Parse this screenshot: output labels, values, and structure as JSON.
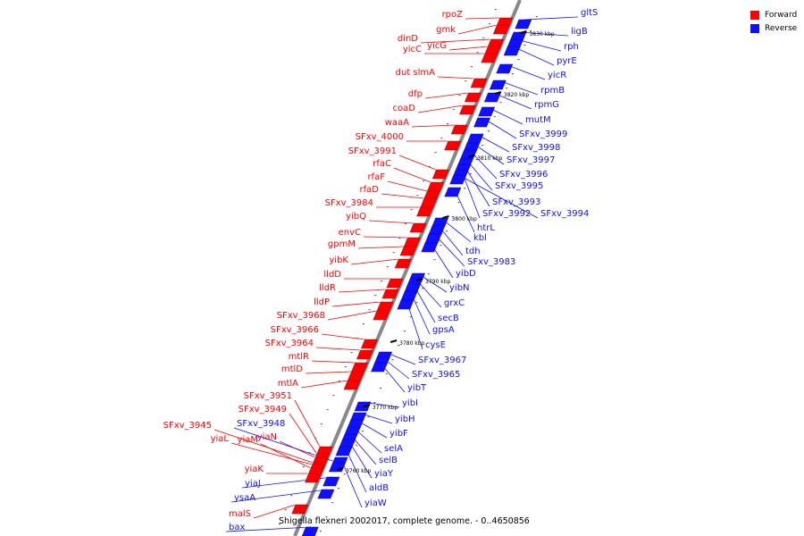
{
  "colors": {
    "forward": "#ff0000",
    "reverse": "#1010ff",
    "backbone": "#888888"
  },
  "legend": [
    {
      "label": "Forward",
      "color": "#ff0000"
    },
    {
      "label": "Reverse",
      "color": "#1010ff"
    }
  ],
  "caption": "Shigella flexneri 2002017, complete genome. - 0..4650856",
  "scale_ticks": [
    "3830 kbp",
    "3820 kbp",
    "3810 kbp",
    "3800 kbp",
    "3790 kbp",
    "3780 kbp",
    "3770 kbp",
    "3760 kbp"
  ],
  "genes_forward": [
    "rpoZ",
    "gmk",
    "dinD",
    "yicG",
    "yicC",
    "dut slmA",
    "dfp",
    "coaD",
    "waaA",
    "SFxv_4000",
    "SFxv_3991",
    "rfaC",
    "rfaF",
    "rfaD",
    "SFxv_3984",
    "yibQ",
    "envC",
    "gpmM",
    "yibK",
    "lldD",
    "lldR",
    "lldP",
    "SFxv_3968",
    "SFxv_3966",
    "SFxv_3964",
    "mtlR",
    "mtlD",
    "mtlA",
    "SFxv_3951",
    "SFxv_3949",
    "yiaN",
    "SFxv_3945",
    "yiaL",
    "yiaM",
    "yiaK",
    "malS"
  ],
  "genes_reverse": [
    "gltS",
    "ligB",
    "rph",
    "pyrE",
    "yicR",
    "rpmB",
    "rpmG",
    "mutM",
    "SFxv_3999",
    "SFxv_3998",
    "SFxv_3997",
    "SFxv_3996",
    "SFxv_3995",
    "SFxv_3993",
    "SFxv_3992",
    "SFxv_3994",
    "htrL",
    "kbl",
    "tdh",
    "SFxv_3983",
    "yibD",
    "yibN",
    "grxC",
    "secB",
    "gpsA",
    "cysE",
    "SFxv_3967",
    "SFxv_3965",
    "yibT",
    "yibI",
    "yibH",
    "yibF",
    "selA",
    "selB",
    "yiaY",
    "aldB",
    "yiaW",
    "SFxv_3948",
    "yiaJ",
    "ysaA",
    "bax"
  ]
}
